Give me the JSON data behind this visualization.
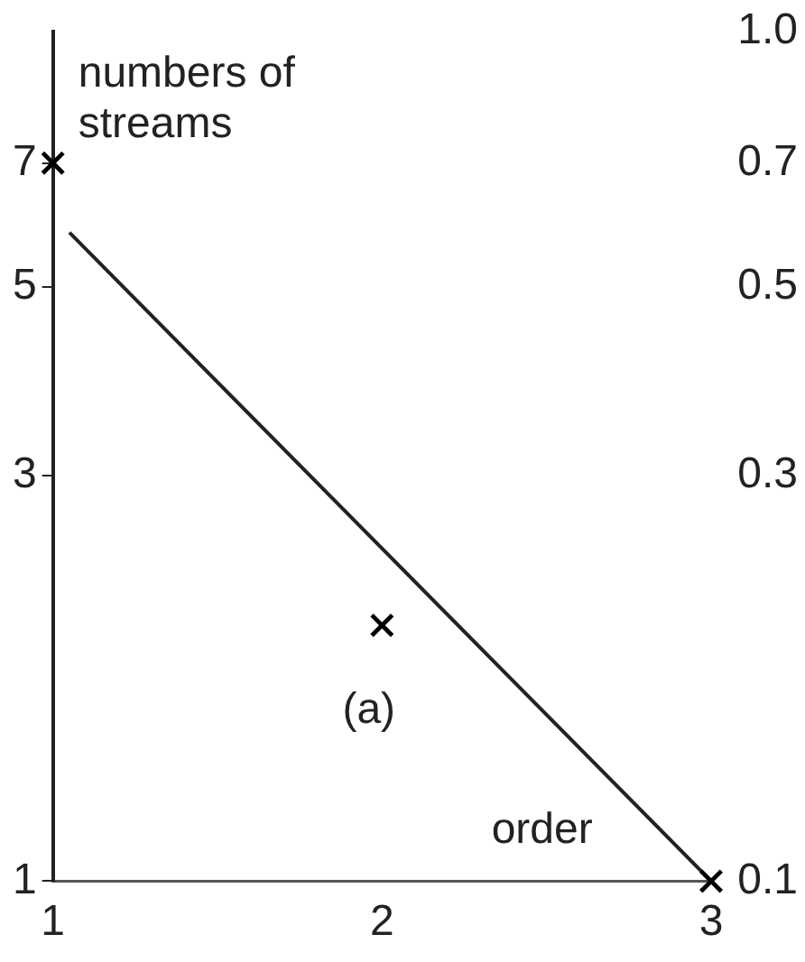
{
  "chart_data": {
    "type": "scatter",
    "xlabel": "order",
    "ylabel": "numbers of streams",
    "annotations": [
      "(a)",
      "1.0",
      "0.7",
      "0.5",
      "0.3",
      "0.1"
    ],
    "x": [
      1,
      2,
      3
    ],
    "xlim": [
      1,
      3
    ],
    "xticks": [
      1,
      2,
      3
    ],
    "ylim": [
      1,
      10
    ],
    "yticks": [
      1,
      3,
      5,
      7
    ],
    "log": "y",
    "grid": false,
    "legend": false,
    "marker": "cross",
    "series": [
      {
        "type": "scatter",
        "color": "#000000",
        "values": [
          7,
          2,
          1
        ]
      },
      {
        "type": "line",
        "color": "#222222",
        "x": [
          1.05,
          3
        ],
        "values": [
          5.8,
          1
        ],
        "marker": "none",
        "line_style": "solid"
      }
    ]
  }
}
